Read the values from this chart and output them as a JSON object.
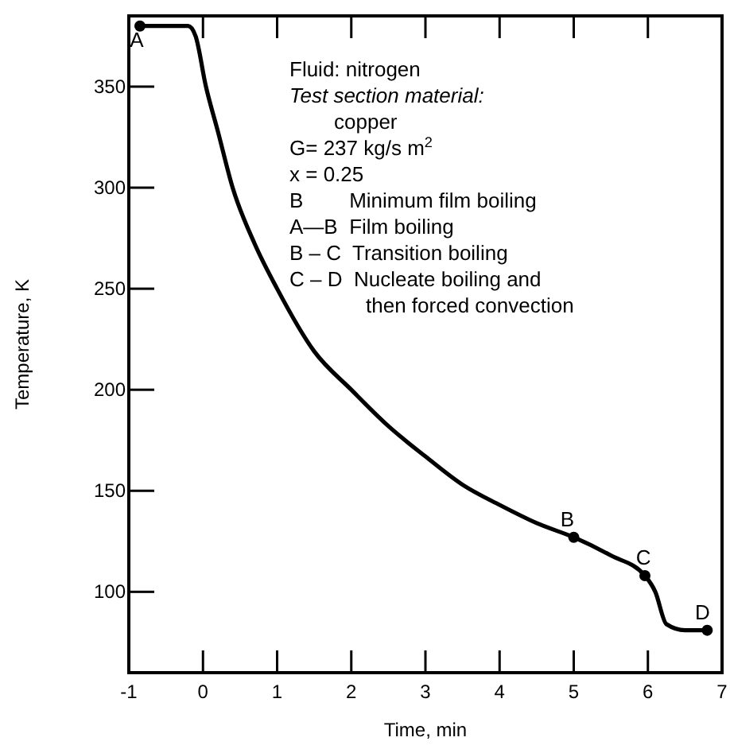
{
  "chart_data": {
    "type": "line",
    "xlabel": "Time,  min",
    "ylabel": "Temperature,  K",
    "xlim": [
      -1,
      7
    ],
    "xticks": [
      -1,
      0,
      1,
      2,
      3,
      4,
      5,
      6,
      7
    ],
    "ylim": [
      60,
      385
    ],
    "yticks": [
      100,
      150,
      200,
      250,
      300,
      350
    ],
    "grid": false,
    "line_style": "solid",
    "series": [
      {
        "color": "#000000",
        "marker": "none",
        "x": [
          -0.85,
          -0.2,
          -0.1,
          0.04,
          0.2,
          0.4,
          0.7,
          1.0,
          1.5,
          2.0,
          2.5,
          3.0,
          3.5,
          4.0,
          4.5,
          5.0,
          5.5,
          5.96,
          6.1,
          6.25,
          6.5,
          6.8
        ],
        "values": [
          380,
          380,
          375,
          350,
          328,
          300,
          272,
          250,
          219,
          200,
          182,
          167,
          153,
          143,
          134,
          127,
          118,
          108,
          100,
          84,
          81,
          81
        ]
      },
      {
        "type": "scatter",
        "color": "#000000",
        "marker": "circle",
        "x": [
          -0.85,
          5.0,
          5.96,
          6.8
        ],
        "values": [
          380,
          127,
          108,
          81
        ]
      }
    ],
    "annotations": [
      {
        "text": "A",
        "x": -0.85,
        "y": 380
      },
      {
        "text": "B",
        "x": 5.0,
        "y": 127
      },
      {
        "text": "C",
        "x": 5.96,
        "y": 108
      },
      {
        "text": "D",
        "x": 6.8,
        "y": 81
      },
      "Fluid: nitrogen",
      "Test section material:",
      "copper",
      "G= 237 kg/s m$^{2}$",
      "x = 0.25",
      "B        Minimum film boiling",
      "A—B  Film boiling",
      "B – C  Transition boiling",
      "C – D  Nucleate boiling and",
      "then forced convection"
    ]
  }
}
